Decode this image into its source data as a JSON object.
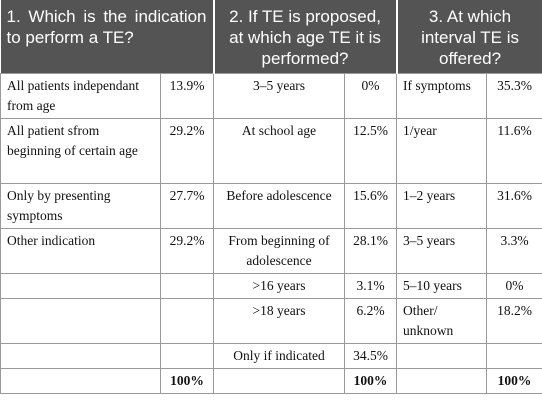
{
  "headers": {
    "col1": "1. Which is the indication to perform a TE?",
    "col2": "2. If TE is proposed, at which age TE it is performed?",
    "col3": "3. At which interval TE is offered?"
  },
  "rows": [
    {
      "ind": "All patients independant from age",
      "ind_pct": "13.9%",
      "age": "3–5 years",
      "age_pct": "0%",
      "int": "If symptoms",
      "int_pct": "35.3%"
    },
    {
      "ind": "All patient sfrom beginning of certain age",
      "ind_pct": "29.2%",
      "age": "At school age",
      "age_pct": "12.5%",
      "int": "1/year",
      "int_pct": "11.6%"
    },
    {
      "ind": "Only by presenting symptoms",
      "ind_pct": "27.7%",
      "age": "Before adolescence",
      "age_pct": "15.6%",
      "int": "1–2 years",
      "int_pct": "31.6%"
    },
    {
      "ind": "Other indication",
      "ind_pct": "29.2%",
      "age": "From beginning of adolescence",
      "age_pct": "28.1%",
      "int": "3–5 years",
      "int_pct": "3.3%"
    },
    {
      "ind": "",
      "ind_pct": "",
      "age": ">16 years",
      "age_pct": "3.1%",
      "int": "5–10 years",
      "int_pct": "0%"
    },
    {
      "ind": "",
      "ind_pct": "",
      "age": ">18 years",
      "age_pct": "6.2%",
      "int": "Other/ unknown",
      "int_pct": "18.2%"
    },
    {
      "ind": "",
      "ind_pct": "",
      "age": "Only if indicated",
      "age_pct": "34.5%",
      "int": "",
      "int_pct": ""
    }
  ],
  "totals": {
    "ind_pct": "100%",
    "age_pct": "100%",
    "int_pct": "100%"
  }
}
